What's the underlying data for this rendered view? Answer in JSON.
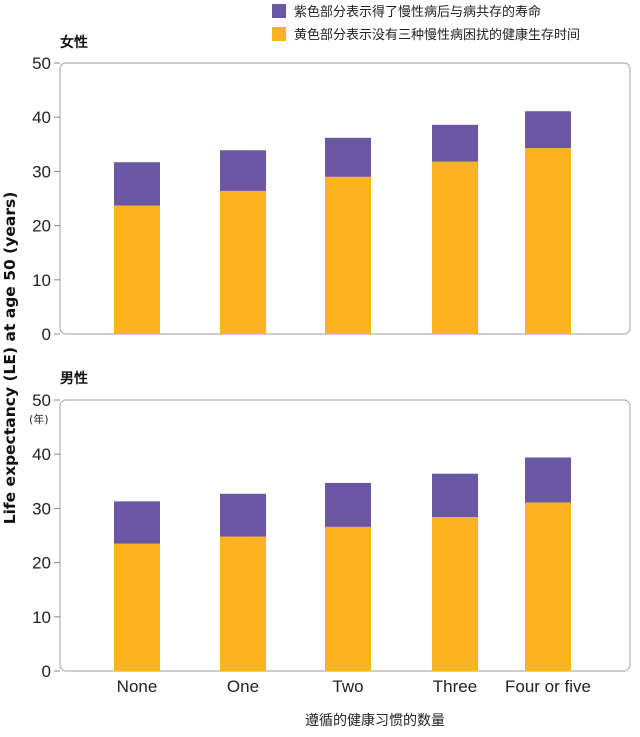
{
  "legend": {
    "purple_label": "紫色部分表示得了慢性病后与病共存的寿命",
    "yellow_label": "黄色部分表示没有三种慢性病困扰的健康生存时间"
  },
  "colors": {
    "purple": "#6a57a3",
    "yellow": "#fbb31f",
    "frame": "#b0b0b0"
  },
  "ylabel": "Life expectancy (LE) at age 50 (years)",
  "xlabel": "遵循的健康习惯的数量",
  "unit_label": "(年)",
  "chart_data": [
    {
      "type": "bar",
      "title": "女性",
      "categories": [
        "None",
        "One",
        "Two",
        "Three",
        "Four or five"
      ],
      "ylim": [
        0,
        50
      ],
      "yticks": [
        0,
        10,
        20,
        30,
        40,
        50
      ],
      "series": [
        {
          "name": "黄色部分表示没有三种慢性病困扰的健康生存时间",
          "values": [
            23.7,
            26.4,
            29.0,
            31.8,
            34.3
          ]
        },
        {
          "name": "紫色部分表示得了慢性病后与病共存的寿命",
          "values": [
            8.0,
            7.5,
            7.2,
            6.8,
            6.8
          ]
        }
      ]
    },
    {
      "type": "bar",
      "title": "男性",
      "categories": [
        "None",
        "One",
        "Two",
        "Three",
        "Four or five"
      ],
      "ylim": [
        0,
        50
      ],
      "yticks": [
        0,
        10,
        20,
        30,
        40,
        50
      ],
      "series": [
        {
          "name": "黄色部分表示没有三种慢性病困扰的健康生存时间",
          "values": [
            23.5,
            24.8,
            26.6,
            28.4,
            31.1
          ]
        },
        {
          "name": "紫色部分表示得了慢性病后与病共存的寿命",
          "values": [
            7.8,
            7.9,
            8.1,
            8.0,
            8.3
          ]
        }
      ]
    }
  ]
}
